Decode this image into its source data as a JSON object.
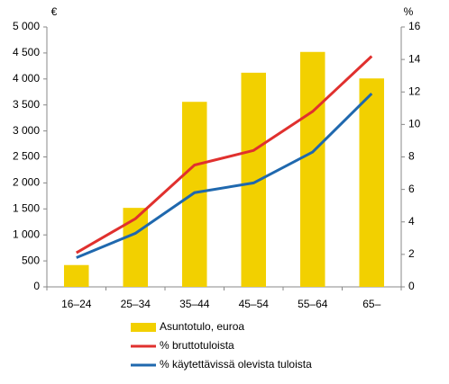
{
  "chart_data": {
    "type": "bar-line",
    "ylabel": "€",
    "y2label": "%",
    "categories": [
      "16–24",
      "25–34",
      "35–44",
      "45–54",
      "55–64",
      "65–"
    ],
    "series": [
      {
        "name": "Asuntotulo, euroa",
        "type": "bar",
        "color": "#f2d000",
        "values": [
          420,
          1520,
          3560,
          4120,
          4520,
          4010
        ]
      },
      {
        "name": "% bruttotuloista",
        "type": "line",
        "axis": "y2",
        "color": "#e0302e",
        "values": [
          2.1,
          4.2,
          7.5,
          8.4,
          10.8,
          14.2
        ]
      },
      {
        "name": "% käytettävissä olevista tuloista",
        "type": "line",
        "axis": "y2",
        "color": "#1f68ae",
        "values": [
          1.8,
          3.3,
          5.8,
          6.4,
          8.3,
          11.9
        ]
      }
    ],
    "ylim": [
      0,
      5000
    ],
    "yticks": [
      0,
      500,
      {
        "value": 1000,
        "label": "1 000"
      },
      {
        "value": 1500,
        "label": "1 500"
      },
      {
        "value": 2000,
        "label": "2 000"
      },
      {
        "value": 2500,
        "label": "2 500"
      },
      {
        "value": 3000,
        "label": "3 000"
      },
      {
        "value": 3500,
        "label": "3 500"
      },
      {
        "value": 4000,
        "label": "4 000"
      },
      {
        "value": 4500,
        "label": "4 500"
      },
      {
        "value": 5000,
        "label": "5 000"
      }
    ],
    "y2lim": [
      0,
      16
    ],
    "y2ticks": [
      0,
      2,
      4,
      6,
      8,
      10,
      12,
      14,
      16
    ],
    "grid": false
  }
}
